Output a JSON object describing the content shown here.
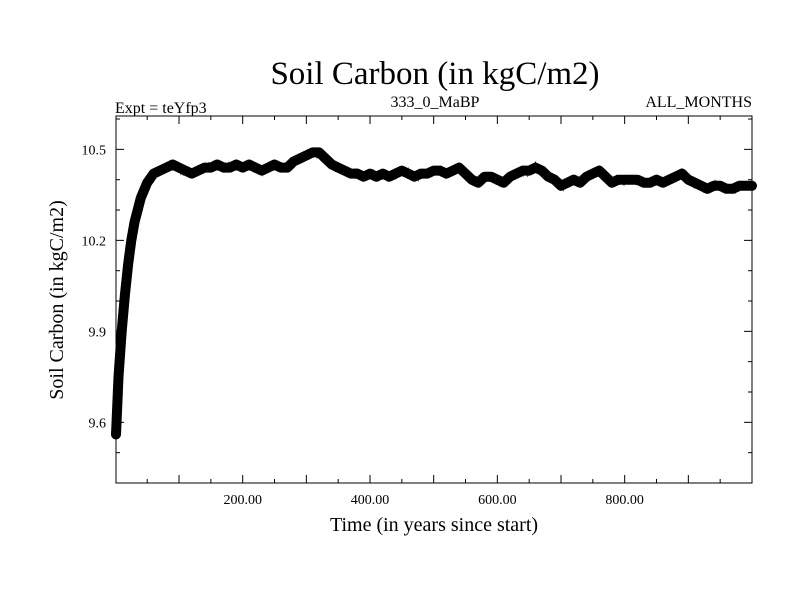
{
  "chart_data": {
    "type": "line",
    "title": "Soil Carbon (in kgC/m2)",
    "subtitle_left": "Expt = teYfp3",
    "subtitle_center": "333_0_MaBP",
    "subtitle_right": "ALL_MONTHS",
    "xlabel": "Time (in years since start)",
    "ylabel": "Soil Carbon (in kgC/m2)",
    "xlim": [
      1,
      1000
    ],
    "ylim": [
      9.4,
      10.61
    ],
    "x_ticks": [
      200,
      400,
      600,
      800
    ],
    "x_tick_labels": [
      "200.00",
      "400.00",
      "600.00",
      "800.00"
    ],
    "y_ticks": [
      9.6,
      9.9,
      10.2,
      10.5
    ],
    "y_tick_labels": [
      "9.6",
      "9.9",
      "10.2",
      "10.5"
    ],
    "series": [
      {
        "name": "Soil Carbon",
        "x": [
          1,
          5,
          10,
          15,
          20,
          25,
          30,
          40,
          50,
          60,
          70,
          80,
          90,
          100,
          110,
          120,
          130,
          140,
          150,
          160,
          170,
          180,
          190,
          200,
          210,
          220,
          230,
          240,
          250,
          260,
          270,
          280,
          290,
          300,
          310,
          320,
          330,
          340,
          350,
          360,
          370,
          380,
          390,
          400,
          410,
          420,
          430,
          440,
          450,
          460,
          470,
          480,
          490,
          500,
          510,
          520,
          530,
          540,
          550,
          560,
          570,
          580,
          590,
          600,
          610,
          620,
          630,
          640,
          650,
          660,
          670,
          680,
          690,
          700,
          710,
          720,
          730,
          740,
          750,
          760,
          770,
          780,
          790,
          800,
          810,
          820,
          830,
          840,
          850,
          860,
          870,
          880,
          890,
          900,
          910,
          920,
          930,
          940,
          950,
          960,
          970,
          980,
          990,
          1000
        ],
        "values": [
          9.56,
          9.75,
          9.9,
          10.02,
          10.12,
          10.2,
          10.26,
          10.34,
          10.39,
          10.42,
          10.43,
          10.44,
          10.45,
          10.44,
          10.43,
          10.42,
          10.43,
          10.44,
          10.44,
          10.45,
          10.44,
          10.44,
          10.45,
          10.44,
          10.45,
          10.44,
          10.43,
          10.44,
          10.45,
          10.44,
          10.44,
          10.46,
          10.47,
          10.48,
          10.49,
          10.49,
          10.47,
          10.45,
          10.44,
          10.43,
          10.42,
          10.42,
          10.41,
          10.42,
          10.41,
          10.42,
          10.41,
          10.42,
          10.43,
          10.42,
          10.41,
          10.42,
          10.42,
          10.43,
          10.43,
          10.42,
          10.43,
          10.44,
          10.42,
          10.4,
          10.39,
          10.41,
          10.41,
          10.4,
          10.39,
          10.41,
          10.42,
          10.43,
          10.43,
          10.44,
          10.43,
          10.41,
          10.4,
          10.38,
          10.39,
          10.4,
          10.39,
          10.41,
          10.42,
          10.43,
          10.41,
          10.39,
          10.4,
          10.4,
          10.4,
          10.4,
          10.39,
          10.39,
          10.4,
          10.39,
          10.4,
          10.41,
          10.42,
          10.4,
          10.39,
          10.38,
          10.37,
          10.38,
          10.38,
          10.37,
          10.37,
          10.38,
          10.38,
          10.38
        ]
      }
    ]
  }
}
